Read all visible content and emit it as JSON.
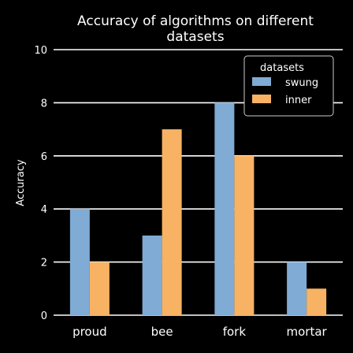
{
  "chart_data": {
    "type": "bar",
    "title": "Accuracy of algorithms on different datasets",
    "title_lines": [
      "Accuracy of algorithms on different",
      "datasets"
    ],
    "xlabel": "",
    "ylabel": "Accuracy",
    "categories": [
      "proud",
      "bee",
      "fork",
      "mortar"
    ],
    "series": [
      {
        "name": "swung",
        "values": [
          4,
          3,
          8,
          2
        ],
        "color": "#7fabd4"
      },
      {
        "name": "inner",
        "values": [
          2,
          7,
          6,
          1
        ],
        "color": "#f7b263"
      }
    ],
    "ylim": [
      0,
      10
    ],
    "yticks": [
      0,
      2,
      4,
      6,
      8,
      10
    ],
    "grid": true,
    "legend": {
      "title": "datasets",
      "placement": "top-right"
    }
  }
}
